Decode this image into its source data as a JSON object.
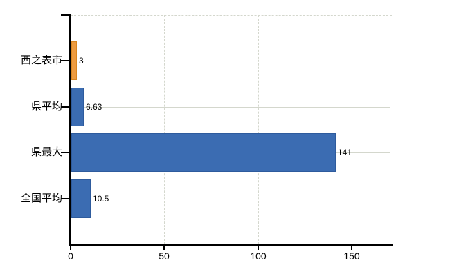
{
  "chart_data": {
    "type": "bar",
    "orientation": "horizontal",
    "title": "",
    "categories": [
      "西之表市",
      "県平均",
      "県最大",
      "全国平均"
    ],
    "values": [
      3,
      6.63,
      141,
      10.5
    ],
    "value_labels": [
      "3",
      "6.63",
      "141",
      "10.5"
    ],
    "series_colors": [
      "#ED9B40",
      "#3B6CB2",
      "#3B6CB2",
      "#3B6CB2"
    ],
    "series_border_colors": [
      "#D9861F",
      "#2E5B9D",
      "#2E5B9D",
      "#2E5B9D"
    ],
    "x_ticks": [
      0,
      50,
      100,
      150
    ],
    "x_tick_labels": [
      "0",
      "50",
      "100",
      "150"
    ],
    "xlim": [
      0,
      172
    ],
    "grid": true,
    "legend": false,
    "gridline_style": {
      "vertical": "dashed",
      "horizontal": "solid",
      "plot_top": "dashed"
    },
    "colors": {
      "grid": "#D4D7CD",
      "axis": "#000000",
      "text": "#000000",
      "background": "#FFFFFF"
    }
  }
}
